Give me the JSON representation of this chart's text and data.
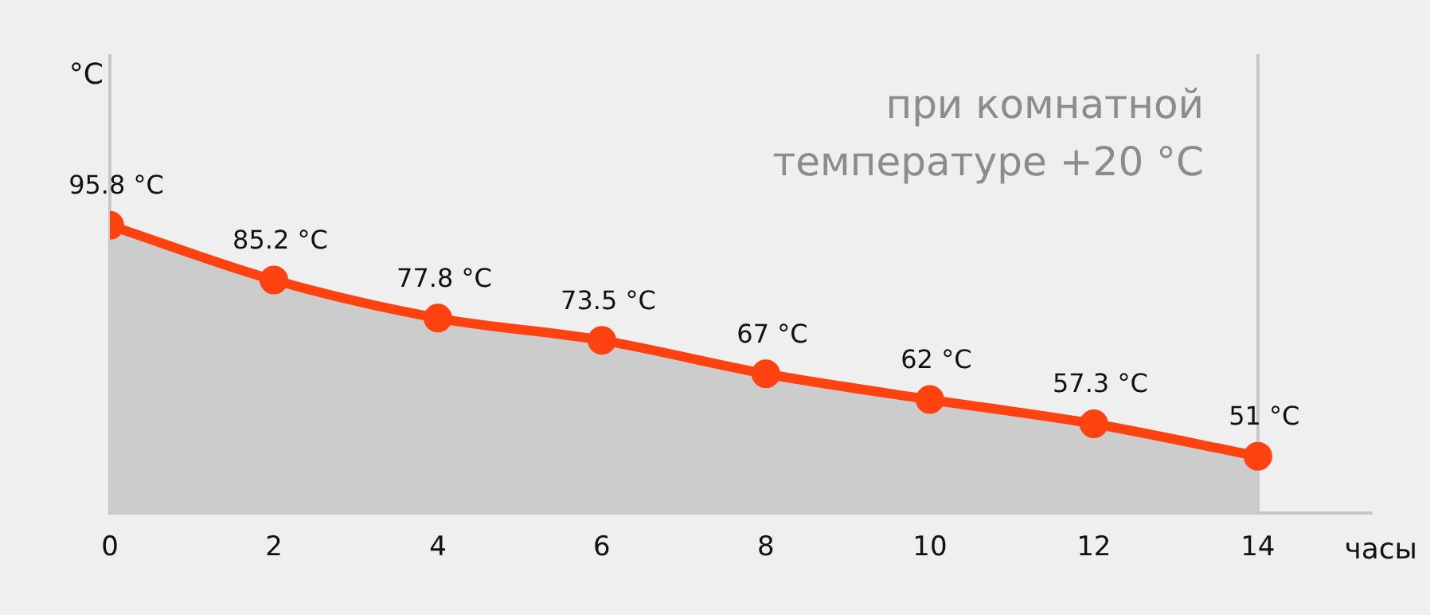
{
  "chart_data": {
    "type": "area",
    "xlabel": "часы",
    "ylabel": "°C",
    "x": [
      0,
      2,
      4,
      6,
      8,
      10,
      12,
      14
    ],
    "series": [
      {
        "color": "#ff4210",
        "values": [
          95.8,
          85.2,
          77.8,
          73.5,
          67,
          62,
          57.3,
          51
        ],
        "value_labels": [
          "95.8 °C",
          "85.2 °C",
          "77.8 °C",
          "73.5 °C",
          "67 °C",
          "62 °C",
          "57.3 °C",
          "51 °C"
        ]
      }
    ],
    "xlim": [
      0,
      15.4
    ],
    "xticks": [
      0,
      2,
      4,
      6,
      8,
      10,
      12,
      14
    ],
    "ylim": [
      40,
      129
    ],
    "tick_labels": "x",
    "grid": false,
    "legend": false,
    "marker": "circle",
    "line_style": "solid",
    "ref_lines": [
      {
        "axis": "x",
        "value": 14,
        "color": "#c8c8c8"
      }
    ],
    "annotations": [
      "при комнатной температуре +20 °C"
    ]
  }
}
